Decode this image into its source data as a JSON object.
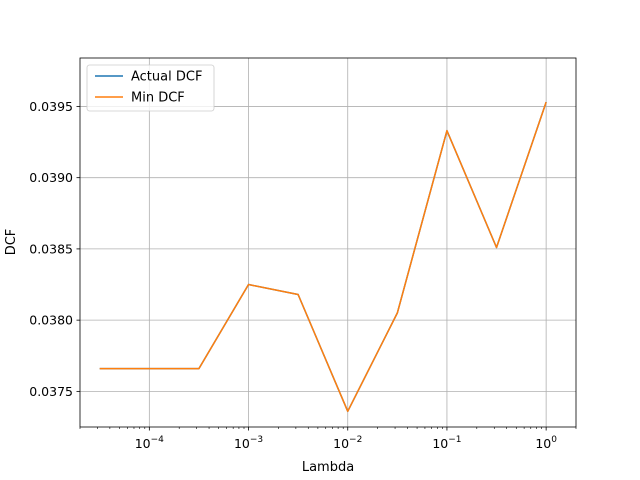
{
  "chart_data": {
    "type": "line",
    "title": "",
    "xlabel": "Lambda",
    "ylabel": "DCF",
    "xscale": "log",
    "xlim": [
      2e-05,
      2
    ],
    "ylim": [
      0.03725,
      0.03984
    ],
    "grid": true,
    "legend_position": "top-left",
    "x": [
      3.16e-05,
      0.0001,
      0.000316,
      0.001,
      0.00316,
      0.01,
      0.0316,
      0.1,
      0.316,
      1
    ],
    "series": [
      {
        "name": "Actual DCF",
        "color": "#1f77b4",
        "values": [
          0.03766,
          0.03766,
          0.03766,
          0.03825,
          0.03818,
          0.03736,
          0.03805,
          0.03933,
          0.03851,
          0.03953
        ]
      },
      {
        "name": "Min DCF",
        "color": "#ff7f0e",
        "values": [
          0.03766,
          0.03766,
          0.03766,
          0.03825,
          0.03818,
          0.03736,
          0.03805,
          0.03933,
          0.03851,
          0.03953
        ]
      }
    ],
    "x_ticks": [
      {
        "value": 0.0001,
        "base": "10",
        "exp": "−4"
      },
      {
        "value": 0.001,
        "base": "10",
        "exp": "−3"
      },
      {
        "value": 0.01,
        "base": "10",
        "exp": "−2"
      },
      {
        "value": 0.1,
        "base": "10",
        "exp": "−1"
      },
      {
        "value": 1,
        "base": "10",
        "exp": "0"
      }
    ],
    "y_ticks": [
      {
        "value": 0.0375,
        "label": "0.0375"
      },
      {
        "value": 0.038,
        "label": "0.0380"
      },
      {
        "value": 0.0385,
        "label": "0.0385"
      },
      {
        "value": 0.039,
        "label": "0.0390"
      },
      {
        "value": 0.0395,
        "label": "0.0395"
      }
    ]
  }
}
